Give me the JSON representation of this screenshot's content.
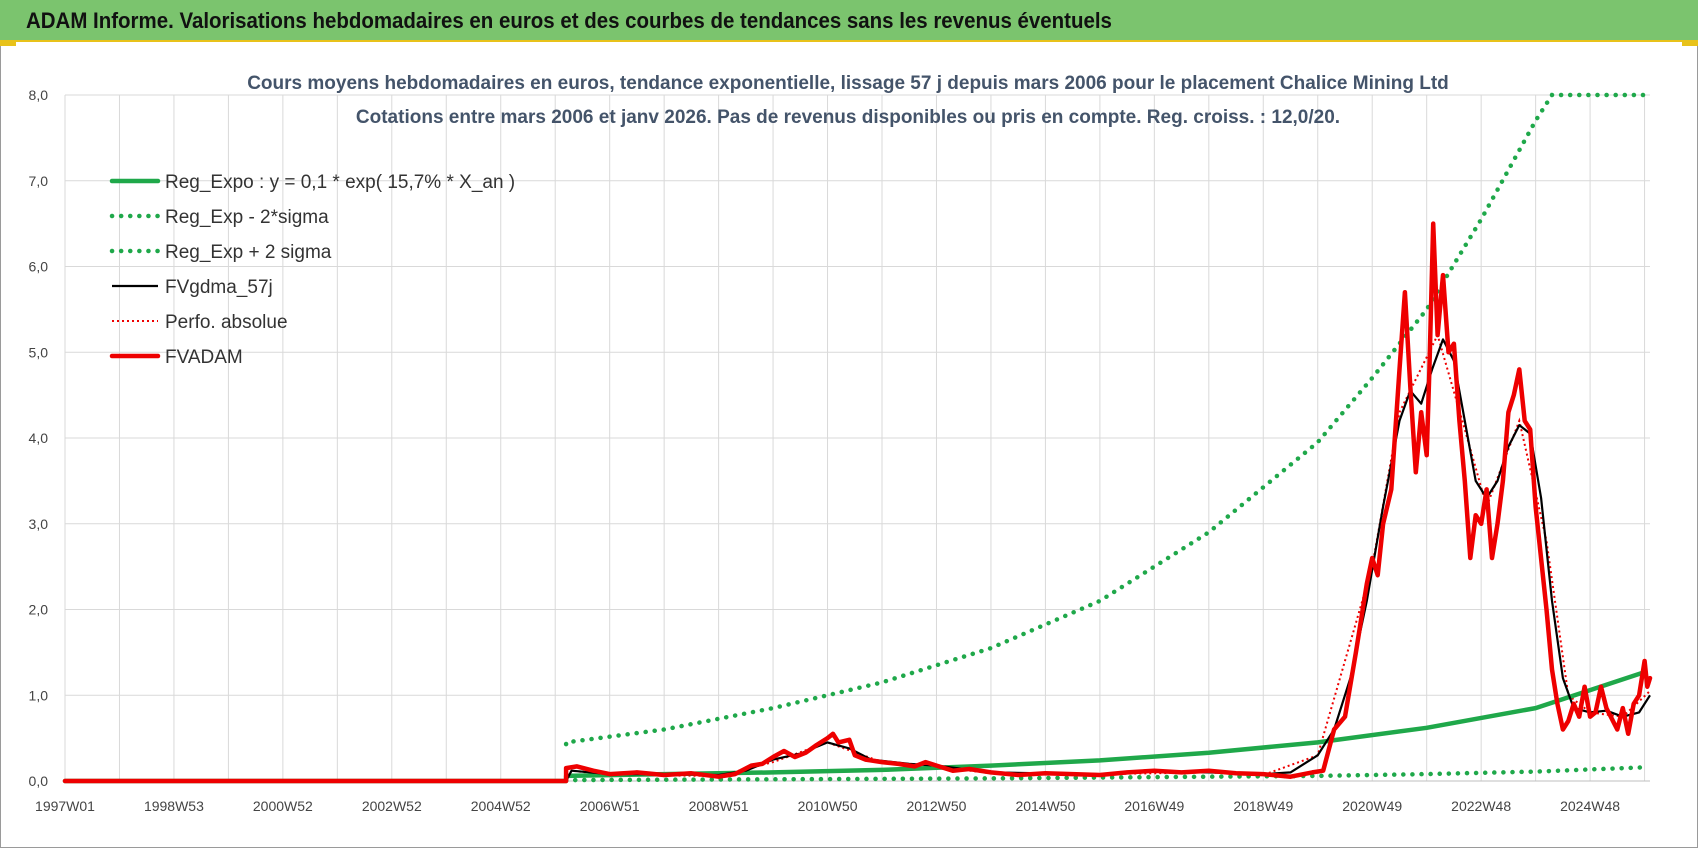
{
  "header": {
    "title": "ADAM Informe. Valorisations hebdomadaires en euros et des courbes de tendances sans les revenus éventuels"
  },
  "colors": {
    "header_bg": "#7bc46e",
    "accent_gold": "#e8c21a",
    "trend_green": "#1fa84a",
    "adam_red": "#ee0000",
    "avg_black": "#000000",
    "title_text": "#44546a"
  },
  "chart_data": {
    "type": "line",
    "title": "Cours moyens hebdomadaires en euros, tendance exponentielle, lissage 57 j depuis mars 2006 pour le placement Chalice Mining Ltd",
    "subtitle": "Cotations entre mars 2006 et janv 2026. Pas de revenus disponibles ou pris en compte. Reg. croiss. : 12,0/20.",
    "xlabel": "",
    "ylabel": "",
    "xlim": [
      1997.0,
      2026.1
    ],
    "ylim": [
      0,
      8
    ],
    "y_ticks": [
      "0,0",
      "1,0",
      "2,0",
      "3,0",
      "4,0",
      "5,0",
      "6,0",
      "7,0",
      "8,0"
    ],
    "x_ticks": [
      {
        "label": "1997W01",
        "x": 1997.0
      },
      {
        "label": "1998W53",
        "x": 1999.0
      },
      {
        "label": "2000W52",
        "x": 2001.0
      },
      {
        "label": "2002W52",
        "x": 2003.0
      },
      {
        "label": "2004W52",
        "x": 2005.0
      },
      {
        "label": "2006W51",
        "x": 2007.0
      },
      {
        "label": "2008W51",
        "x": 2009.0
      },
      {
        "label": "2010W50",
        "x": 2011.0
      },
      {
        "label": "2012W50",
        "x": 2013.0
      },
      {
        "label": "2014W50",
        "x": 2015.0
      },
      {
        "label": "2016W49",
        "x": 2017.0
      },
      {
        "label": "2018W49",
        "x": 2019.0
      },
      {
        "label": "2020W49",
        "x": 2021.0
      },
      {
        "label": "2022W48",
        "x": 2023.0
      },
      {
        "label": "2024W48",
        "x": 2025.0
      }
    ],
    "grid": true,
    "legend_position": "top-left",
    "series": [
      {
        "name": "Reg_Expo : y = 0,1 * exp( 15,7% *  X_an )",
        "style": "solid-thick",
        "color": "#1fa84a",
        "points": [
          [
            1997.0,
            0.0
          ],
          [
            2006.2,
            0.0
          ],
          [
            2006.2,
            0.06
          ],
          [
            2008.0,
            0.08
          ],
          [
            2010.0,
            0.1
          ],
          [
            2012.0,
            0.13
          ],
          [
            2014.0,
            0.18
          ],
          [
            2016.0,
            0.24
          ],
          [
            2018.0,
            0.33
          ],
          [
            2020.0,
            0.45
          ],
          [
            2022.0,
            0.62
          ],
          [
            2024.0,
            0.85
          ],
          [
            2026.0,
            1.27
          ]
        ]
      },
      {
        "name": "Reg_Exp - 2*sigma",
        "style": "dotted",
        "color": "#1fa84a",
        "points": [
          [
            2006.2,
            0.01
          ],
          [
            2010.0,
            0.02
          ],
          [
            2014.0,
            0.03
          ],
          [
            2018.0,
            0.05
          ],
          [
            2020.0,
            0.06
          ],
          [
            2022.0,
            0.08
          ],
          [
            2024.0,
            0.11
          ],
          [
            2026.0,
            0.16
          ]
        ]
      },
      {
        "name": "Reg_Exp + 2 sigma",
        "style": "dotted",
        "color": "#1fa84a",
        "points": [
          [
            2006.2,
            0.43
          ],
          [
            2006.2,
            0.45
          ],
          [
            2008.0,
            0.6
          ],
          [
            2010.0,
            0.85
          ],
          [
            2012.0,
            1.15
          ],
          [
            2014.0,
            1.55
          ],
          [
            2016.0,
            2.1
          ],
          [
            2018.0,
            2.9
          ],
          [
            2020.0,
            3.95
          ],
          [
            2021.0,
            4.7
          ],
          [
            2022.0,
            5.5
          ],
          [
            2023.0,
            6.55
          ],
          [
            2024.0,
            7.7
          ],
          [
            2024.3,
            8.0
          ],
          [
            2026.0,
            8.0
          ]
        ]
      },
      {
        "name": "FVgdma_57j",
        "style": "solid",
        "color": "#000000",
        "points": [
          [
            1997.0,
            0.0
          ],
          [
            2006.2,
            0.0
          ],
          [
            2006.3,
            0.12
          ],
          [
            2007.0,
            0.08
          ],
          [
            2008.0,
            0.08
          ],
          [
            2009.0,
            0.07
          ],
          [
            2009.5,
            0.12
          ],
          [
            2010.0,
            0.25
          ],
          [
            2010.5,
            0.32
          ],
          [
            2011.0,
            0.45
          ],
          [
            2011.4,
            0.38
          ],
          [
            2011.8,
            0.25
          ],
          [
            2012.5,
            0.2
          ],
          [
            2013.0,
            0.18
          ],
          [
            2013.5,
            0.14
          ],
          [
            2014.0,
            0.1
          ],
          [
            2015.0,
            0.09
          ],
          [
            2016.0,
            0.08
          ],
          [
            2017.0,
            0.11
          ],
          [
            2018.0,
            0.1
          ],
          [
            2019.0,
            0.08
          ],
          [
            2019.5,
            0.1
          ],
          [
            2020.0,
            0.3
          ],
          [
            2020.3,
            0.6
          ],
          [
            2020.6,
            1.2
          ],
          [
            2020.9,
            2.1
          ],
          [
            2021.2,
            3.2
          ],
          [
            2021.5,
            4.2
          ],
          [
            2021.7,
            4.55
          ],
          [
            2021.9,
            4.4
          ],
          [
            2022.1,
            4.8
          ],
          [
            2022.3,
            5.15
          ],
          [
            2022.5,
            4.9
          ],
          [
            2022.7,
            4.2
          ],
          [
            2022.9,
            3.5
          ],
          [
            2023.1,
            3.3
          ],
          [
            2023.3,
            3.5
          ],
          [
            2023.5,
            3.9
          ],
          [
            2023.7,
            4.15
          ],
          [
            2023.9,
            4.05
          ],
          [
            2024.1,
            3.3
          ],
          [
            2024.3,
            2.1
          ],
          [
            2024.5,
            1.2
          ],
          [
            2024.7,
            0.85
          ],
          [
            2025.0,
            0.8
          ],
          [
            2025.3,
            0.82
          ],
          [
            2025.6,
            0.75
          ],
          [
            2025.9,
            0.8
          ],
          [
            2026.1,
            1.0
          ]
        ]
      },
      {
        "name": "Perfo. absolue",
        "style": "dotted",
        "color": "#ee0000",
        "points": [
          [
            1997.0,
            0.0
          ],
          [
            2006.2,
            0.0
          ],
          [
            2006.3,
            0.12
          ],
          [
            2007.0,
            0.07
          ],
          [
            2009.0,
            0.06
          ],
          [
            2010.0,
            0.22
          ],
          [
            2011.0,
            0.45
          ],
          [
            2012.0,
            0.22
          ],
          [
            2013.0,
            0.17
          ],
          [
            2014.0,
            0.09
          ],
          [
            2016.0,
            0.08
          ],
          [
            2018.0,
            0.1
          ],
          [
            2019.0,
            0.07
          ],
          [
            2020.0,
            0.3
          ],
          [
            2021.0,
            2.5
          ],
          [
            2021.5,
            4.3
          ],
          [
            2022.2,
            5.2
          ],
          [
            2022.7,
            4.1
          ],
          [
            2023.1,
            3.2
          ],
          [
            2023.7,
            4.2
          ],
          [
            2024.2,
            2.8
          ],
          [
            2024.6,
            1.0
          ],
          [
            2025.0,
            0.8
          ],
          [
            2025.6,
            0.75
          ],
          [
            2026.1,
            1.05
          ]
        ]
      },
      {
        "name": "FVADAM",
        "style": "solid-thick",
        "color": "#ee0000",
        "points": [
          [
            1997.0,
            0.0
          ],
          [
            2006.2,
            0.0
          ],
          [
            2006.2,
            0.15
          ],
          [
            2006.4,
            0.17
          ],
          [
            2006.7,
            0.12
          ],
          [
            2007.0,
            0.08
          ],
          [
            2007.5,
            0.1
          ],
          [
            2008.0,
            0.07
          ],
          [
            2008.5,
            0.09
          ],
          [
            2009.0,
            0.05
          ],
          [
            2009.3,
            0.08
          ],
          [
            2009.6,
            0.18
          ],
          [
            2009.8,
            0.2
          ],
          [
            2010.0,
            0.28
          ],
          [
            2010.2,
            0.35
          ],
          [
            2010.4,
            0.28
          ],
          [
            2010.6,
            0.33
          ],
          [
            2010.8,
            0.42
          ],
          [
            2011.0,
            0.5
          ],
          [
            2011.1,
            0.55
          ],
          [
            2011.2,
            0.45
          ],
          [
            2011.4,
            0.48
          ],
          [
            2011.5,
            0.3
          ],
          [
            2011.7,
            0.25
          ],
          [
            2012.0,
            0.22
          ],
          [
            2012.3,
            0.2
          ],
          [
            2012.6,
            0.17
          ],
          [
            2012.8,
            0.22
          ],
          [
            2013.0,
            0.18
          ],
          [
            2013.3,
            0.12
          ],
          [
            2013.6,
            0.14
          ],
          [
            2014.0,
            0.1
          ],
          [
            2014.5,
            0.07
          ],
          [
            2015.0,
            0.09
          ],
          [
            2015.5,
            0.08
          ],
          [
            2016.0,
            0.07
          ],
          [
            2016.5,
            0.1
          ],
          [
            2017.0,
            0.12
          ],
          [
            2017.5,
            0.1
          ],
          [
            2018.0,
            0.12
          ],
          [
            2018.5,
            0.09
          ],
          [
            2019.0,
            0.08
          ],
          [
            2019.5,
            0.05
          ],
          [
            2019.9,
            0.1
          ],
          [
            2020.1,
            0.12
          ],
          [
            2020.3,
            0.6
          ],
          [
            2020.5,
            0.75
          ],
          [
            2020.7,
            1.5
          ],
          [
            2020.9,
            2.3
          ],
          [
            2021.0,
            2.6
          ],
          [
            2021.1,
            2.4
          ],
          [
            2021.2,
            3.0
          ],
          [
            2021.35,
            3.4
          ],
          [
            2021.5,
            4.8
          ],
          [
            2021.6,
            5.7
          ],
          [
            2021.7,
            4.6
          ],
          [
            2021.8,
            3.6
          ],
          [
            2021.9,
            4.3
          ],
          [
            2022.0,
            3.8
          ],
          [
            2022.05,
            4.8
          ],
          [
            2022.12,
            6.5
          ],
          [
            2022.2,
            5.2
          ],
          [
            2022.3,
            5.9
          ],
          [
            2022.4,
            5.0
          ],
          [
            2022.5,
            5.1
          ],
          [
            2022.6,
            4.2
          ],
          [
            2022.7,
            3.5
          ],
          [
            2022.8,
            2.6
          ],
          [
            2022.9,
            3.1
          ],
          [
            2023.0,
            3.0
          ],
          [
            2023.1,
            3.4
          ],
          [
            2023.2,
            2.6
          ],
          [
            2023.3,
            3.0
          ],
          [
            2023.4,
            3.5
          ],
          [
            2023.5,
            4.3
          ],
          [
            2023.6,
            4.5
          ],
          [
            2023.7,
            4.8
          ],
          [
            2023.8,
            4.2
          ],
          [
            2023.9,
            4.1
          ],
          [
            2024.0,
            3.2
          ],
          [
            2024.2,
            2.0
          ],
          [
            2024.3,
            1.3
          ],
          [
            2024.4,
            0.9
          ],
          [
            2024.5,
            0.6
          ],
          [
            2024.6,
            0.7
          ],
          [
            2024.7,
            0.9
          ],
          [
            2024.8,
            0.75
          ],
          [
            2024.9,
            1.1
          ],
          [
            2025.0,
            0.75
          ],
          [
            2025.1,
            0.8
          ],
          [
            2025.2,
            1.1
          ],
          [
            2025.3,
            0.85
          ],
          [
            2025.5,
            0.6
          ],
          [
            2025.6,
            0.85
          ],
          [
            2025.7,
            0.55
          ],
          [
            2025.8,
            0.9
          ],
          [
            2025.9,
            1.0
          ],
          [
            2026.0,
            1.4
          ],
          [
            2026.05,
            1.1
          ],
          [
            2026.1,
            1.2
          ]
        ]
      }
    ]
  }
}
